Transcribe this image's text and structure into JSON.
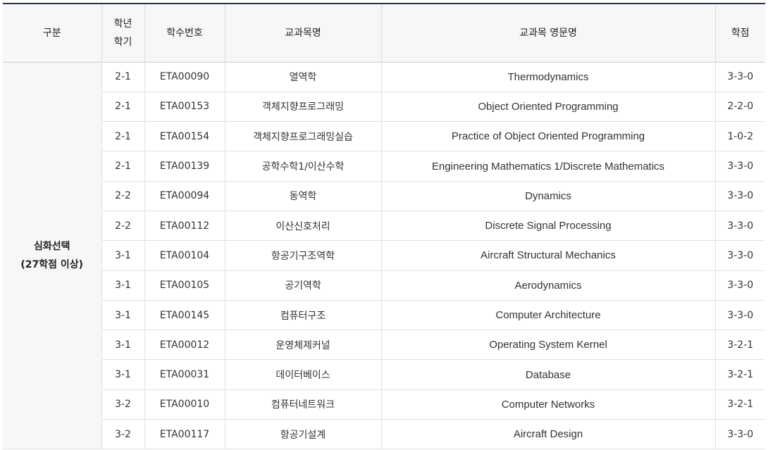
{
  "headers": {
    "category": "구분",
    "year_term_line1": "학년",
    "year_term_line2": "학기",
    "course_code": "학수번호",
    "course_name": "교과목명",
    "course_name_en": "교과목 영문명",
    "credits": "학점"
  },
  "category": {
    "line1": "심화선택",
    "line2": "(27학점 이상)"
  },
  "rows": [
    {
      "term": "2-1",
      "code": "ETA00090",
      "name": "열역학",
      "name_en": "Thermodynamics",
      "credits": "3-3-0"
    },
    {
      "term": "2-1",
      "code": "ETA00153",
      "name": "객체지향프로그래밍",
      "name_en": "Object Oriented Programming",
      "credits": "2-2-0"
    },
    {
      "term": "2-1",
      "code": "ETA00154",
      "name": "객체지향프로그래밍실습",
      "name_en": "Practice of Object Oriented Programming",
      "credits": "1-0-2"
    },
    {
      "term": "2-1",
      "code": "ETA00139",
      "name": "공학수학1/이산수학",
      "name_en": "Engineering Mathematics 1/Discrete Mathematics",
      "credits": "3-3-0"
    },
    {
      "term": "2-2",
      "code": "ETA00094",
      "name": "동역학",
      "name_en": "Dynamics",
      "credits": "3-3-0"
    },
    {
      "term": "2-2",
      "code": "ETA00112",
      "name": "이산신호처리",
      "name_en": "Discrete Signal Processing",
      "credits": "3-3-0"
    },
    {
      "term": "3-1",
      "code": "ETA00104",
      "name": "항공기구조역학",
      "name_en": "Aircraft Structural Mechanics",
      "credits": "3-3-0"
    },
    {
      "term": "3-1",
      "code": "ETA00105",
      "name": "공기역학",
      "name_en": "Aerodynamics",
      "credits": "3-3-0"
    },
    {
      "term": "3-1",
      "code": "ETA00145",
      "name": "컴퓨터구조",
      "name_en": "Computer Architecture",
      "credits": "3-3-0"
    },
    {
      "term": "3-1",
      "code": "ETA00012",
      "name": "운영체제커널",
      "name_en": "Operating System Kernel",
      "credits": "3-2-1"
    },
    {
      "term": "3-1",
      "code": "ETA00031",
      "name": "데이터베이스",
      "name_en": "Database",
      "credits": "3-2-1"
    },
    {
      "term": "3-2",
      "code": "ETA00010",
      "name": "컴퓨터네트워크",
      "name_en": "Computer Networks",
      "credits": "3-2-1"
    },
    {
      "term": "3-2",
      "code": "ETA00117",
      "name": "항공기설계",
      "name_en": "Aircraft Design",
      "credits": "3-3-0"
    }
  ]
}
